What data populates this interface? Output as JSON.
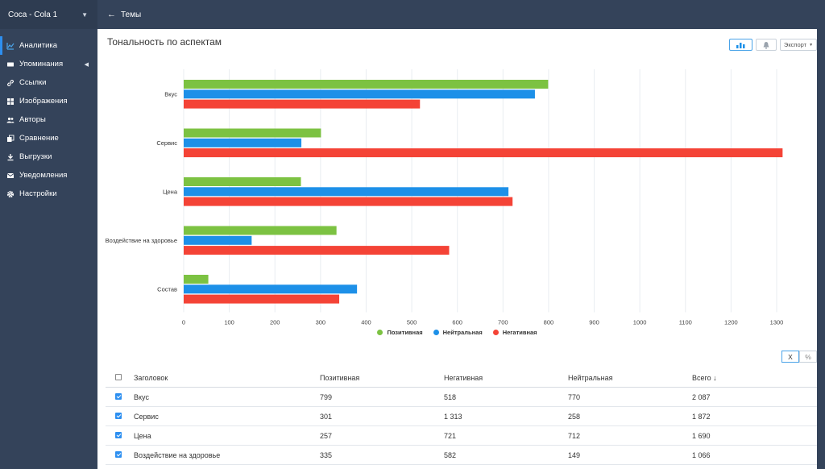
{
  "sidebar": {
    "project": "Coca - Cola 1",
    "items": [
      {
        "label": "Аналитика",
        "icon": "analytics-icon",
        "active": true
      },
      {
        "label": "Упоминания",
        "icon": "mentions-icon",
        "caret": true
      },
      {
        "label": "Ссылки",
        "icon": "link-icon"
      },
      {
        "label": "Изображения",
        "icon": "images-icon"
      },
      {
        "label": "Авторы",
        "icon": "authors-icon"
      },
      {
        "label": "Сравнение",
        "icon": "compare-icon"
      },
      {
        "label": "Выгрузки",
        "icon": "download-icon"
      },
      {
        "label": "Уведомления",
        "icon": "mail-icon"
      },
      {
        "label": "Настройки",
        "icon": "gear-icon"
      }
    ]
  },
  "header": {
    "back_label": "Темы"
  },
  "main": {
    "title": "Тональность по аспектам",
    "export_label": "Экспорт",
    "unit_toggle": [
      "Х",
      "%"
    ]
  },
  "colors": {
    "positive": "#7cc242",
    "neutral": "#1d90e8",
    "negative": "#f44336",
    "accent": "#2d8ff0"
  },
  "chart_data": {
    "type": "bar",
    "orientation": "horizontal",
    "categories": [
      "Вкус",
      "Сервис",
      "Цена",
      "Воздействие на здоровье",
      "Состав"
    ],
    "series": [
      {
        "name": "Позитивная",
        "values": [
          799,
          301,
          257,
          335,
          54
        ]
      },
      {
        "name": "Нейтральная",
        "values": [
          770,
          258,
          712,
          149,
          380
        ]
      },
      {
        "name": "Негативная",
        "values": [
          518,
          1313,
          721,
          582,
          341
        ]
      }
    ],
    "xlim": [
      0,
      1300
    ],
    "xticks": [
      0,
      100,
      200,
      300,
      400,
      500,
      600,
      700,
      800,
      900,
      1000,
      1100,
      1200,
      1300
    ],
    "grid": true,
    "legend": "bottom-center"
  },
  "table": {
    "headers": {
      "title": "Заголовок",
      "positive": "Позитивная",
      "negative": "Негативная",
      "neutral": "Нейтральная",
      "total": "Всего ↓"
    },
    "rows": [
      {
        "title": "Вкус",
        "positive": "799",
        "negative": "518",
        "neutral": "770",
        "total": "2 087"
      },
      {
        "title": "Сервис",
        "positive": "301",
        "negative": "1 313",
        "neutral": "258",
        "total": "1 872"
      },
      {
        "title": "Цена",
        "positive": "257",
        "negative": "721",
        "neutral": "712",
        "total": "1 690"
      },
      {
        "title": "Воздействие на здоровье",
        "positive": "335",
        "negative": "582",
        "neutral": "149",
        "total": "1 066"
      }
    ]
  }
}
